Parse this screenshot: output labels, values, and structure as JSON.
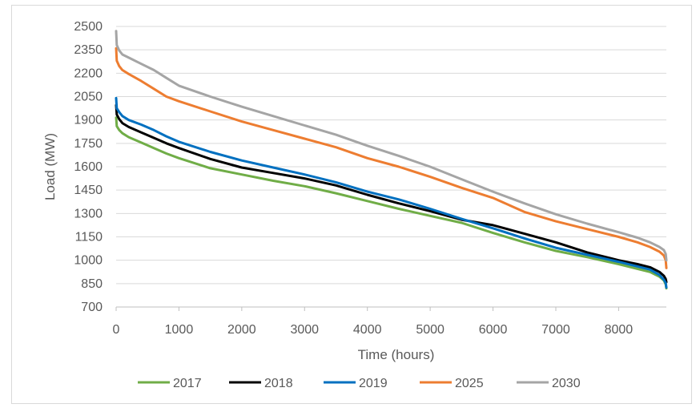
{
  "chart_data": {
    "type": "line",
    "title": "",
    "xlabel": "Time (hours)",
    "ylabel": "Load (MW)",
    "xlim": [
      0,
      8760
    ],
    "ylim": [
      700,
      2500
    ],
    "xticks": [
      0,
      1000,
      2000,
      3000,
      4000,
      5000,
      6000,
      7000,
      8000
    ],
    "yticks": [
      700,
      850,
      1000,
      1150,
      1300,
      1450,
      1600,
      1750,
      1900,
      2050,
      2200,
      2350,
      2500
    ],
    "grid": "horizontal",
    "legend_position": "bottom",
    "series": [
      {
        "name": "2017",
        "color": "#70ad47",
        "x": [
          0,
          10,
          50,
          100,
          200,
          400,
          600,
          800,
          1000,
          1500,
          2000,
          2500,
          3000,
          3500,
          4000,
          4500,
          5000,
          5500,
          6000,
          6500,
          7000,
          7500,
          8000,
          8300,
          8500,
          8650,
          8720,
          8750,
          8760
        ],
        "y": [
          1915,
          1860,
          1835,
          1815,
          1790,
          1755,
          1720,
          1685,
          1655,
          1590,
          1550,
          1510,
          1475,
          1430,
          1380,
          1330,
          1285,
          1240,
          1175,
          1115,
          1060,
          1020,
          975,
          945,
          925,
          895,
          870,
          845,
          820
        ]
      },
      {
        "name": "2018",
        "color": "#000000",
        "x": [
          0,
          10,
          50,
          100,
          200,
          400,
          600,
          800,
          1000,
          1500,
          2000,
          2500,
          3000,
          3500,
          4000,
          4500,
          5000,
          5500,
          6000,
          6500,
          7000,
          7500,
          8000,
          8300,
          8500,
          8650,
          8720,
          8750,
          8760
        ],
        "y": [
          1995,
          1935,
          1905,
          1880,
          1855,
          1820,
          1785,
          1750,
          1720,
          1650,
          1595,
          1560,
          1525,
          1480,
          1420,
          1365,
          1315,
          1260,
          1225,
          1170,
          1115,
          1050,
          1000,
          975,
          955,
          925,
          900,
          880,
          860
        ]
      },
      {
        "name": "2019",
        "color": "#0070c0",
        "x": [
          0,
          10,
          50,
          100,
          200,
          400,
          600,
          800,
          1000,
          1500,
          2000,
          2500,
          3000,
          3500,
          4000,
          4500,
          5000,
          5500,
          6000,
          6500,
          7000,
          7500,
          8000,
          8300,
          8500,
          8650,
          8720,
          8750,
          8760
        ],
        "y": [
          2040,
          1975,
          1950,
          1925,
          1900,
          1870,
          1835,
          1795,
          1760,
          1695,
          1640,
          1595,
          1550,
          1500,
          1440,
          1390,
          1330,
          1265,
          1205,
          1140,
          1080,
          1035,
          990,
          960,
          940,
          905,
          875,
          855,
          825
        ]
      },
      {
        "name": "2025",
        "color": "#ed7d31",
        "x": [
          0,
          10,
          50,
          100,
          200,
          400,
          600,
          800,
          1000,
          1500,
          2000,
          2500,
          3000,
          3500,
          4000,
          4500,
          5000,
          5500,
          6000,
          6500,
          7000,
          7500,
          8000,
          8300,
          8500,
          8650,
          8720,
          8750,
          8760
        ],
        "y": [
          2360,
          2280,
          2245,
          2220,
          2195,
          2150,
          2100,
          2050,
          2020,
          1955,
          1890,
          1835,
          1780,
          1725,
          1655,
          1600,
          1535,
          1465,
          1400,
          1310,
          1250,
          1200,
          1150,
          1115,
          1085,
          1055,
          1030,
          1000,
          950
        ]
      },
      {
        "name": "2030",
        "color": "#a5a5a5",
        "x": [
          0,
          10,
          50,
          100,
          200,
          400,
          600,
          800,
          1000,
          1500,
          2000,
          2500,
          3000,
          3500,
          4000,
          4500,
          5000,
          5500,
          6000,
          6500,
          7000,
          7500,
          8000,
          8300,
          8500,
          8650,
          8720,
          8750,
          8760
        ],
        "y": [
          2470,
          2380,
          2345,
          2320,
          2300,
          2260,
          2220,
          2170,
          2120,
          2050,
          1985,
          1925,
          1865,
          1805,
          1735,
          1670,
          1600,
          1520,
          1440,
          1365,
          1295,
          1235,
          1180,
          1145,
          1115,
          1085,
          1065,
          1040,
          1000
        ]
      }
    ]
  }
}
